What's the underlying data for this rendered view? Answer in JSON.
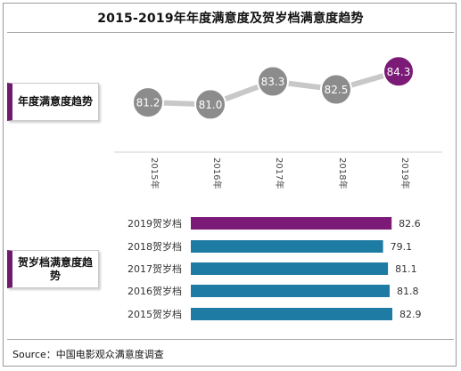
{
  "title": "2015-2019年年度满意度及贺岁档满意度趋势",
  "source": "Source：中国电影观众满意度调查",
  "colors": {
    "highlight": "#7b1a77",
    "bar": "#1e7ba3",
    "marker": "#8c8c8c",
    "line": "#c8c8c8",
    "border": "#6f1a6c"
  },
  "chart_data": [
    {
      "type": "line",
      "label": "年度满意度趋势",
      "x": [
        "2015年",
        "2016年",
        "2017年",
        "2018年",
        "2019年"
      ],
      "values": [
        81.2,
        81.0,
        83.3,
        82.5,
        84.3
      ],
      "highlight_index": 4
    },
    {
      "type": "bar",
      "orientation": "horizontal",
      "label": "贺岁档满意度趋势",
      "categories": [
        "2019贺岁档",
        "2018贺岁档",
        "2017贺岁档",
        "2016贺岁档",
        "2015贺岁档"
      ],
      "values": [
        82.6,
        79.1,
        81.1,
        81.8,
        82.9
      ],
      "highlight_index": 0
    }
  ]
}
